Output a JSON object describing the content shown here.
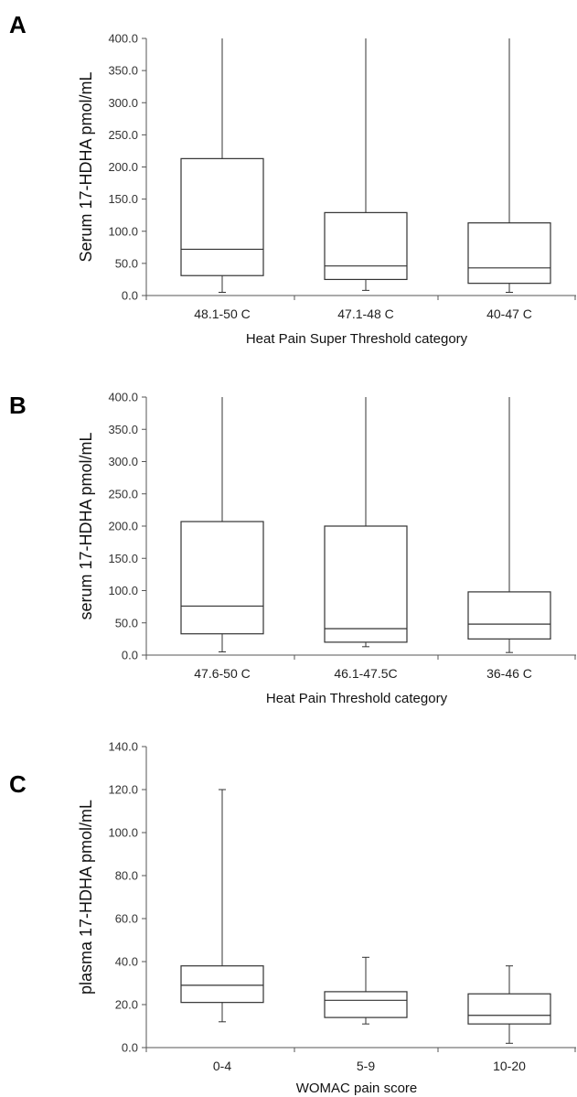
{
  "chart_data": [
    {
      "panel": "A",
      "type": "box",
      "ylabel": "Serum 17-HDHA pmol/mL",
      "xlabel": "Heat Pain Super Threshold category",
      "ylim": [
        0,
        400
      ],
      "yticks": [
        "0.0",
        "50.0",
        "100.0",
        "150.0",
        "200.0",
        "250.0",
        "300.0",
        "350.0",
        "400.0"
      ],
      "categories": [
        "48.1-50 C",
        "47.1-48 C",
        "40-47 C"
      ],
      "boxes": [
        {
          "min": 5,
          "q1": 31,
          "median": 72,
          "q3": 213,
          "max": 400
        },
        {
          "min": 8,
          "q1": 25,
          "median": 46,
          "q3": 129,
          "max": 400
        },
        {
          "min": 5,
          "q1": 19,
          "median": 43,
          "q3": 113,
          "max": 400
        }
      ]
    },
    {
      "panel": "B",
      "type": "box",
      "ylabel": "serum 17-HDHA pmol/mL",
      "xlabel": "Heat Pain Threshold category",
      "ylim": [
        0,
        400
      ],
      "yticks": [
        "0.0",
        "50.0",
        "100.0",
        "150.0",
        "200.0",
        "250.0",
        "300.0",
        "350.0",
        "400.0"
      ],
      "categories": [
        "47.6-50 C",
        "46.1-47.5C",
        "36-46 C"
      ],
      "boxes": [
        {
          "min": 5,
          "q1": 33,
          "median": 76,
          "q3": 207,
          "max": 400
        },
        {
          "min": 13,
          "q1": 20,
          "median": 41,
          "q3": 200,
          "max": 400
        },
        {
          "min": 4,
          "q1": 25,
          "median": 48,
          "q3": 98,
          "max": 400
        }
      ]
    },
    {
      "panel": "C",
      "type": "box",
      "ylabel": "plasma 17-HDHA pmol/mL",
      "xlabel": "WOMAC pain score",
      "ylim": [
        0,
        140
      ],
      "yticks": [
        "0.0",
        "20.0",
        "40.0",
        "60.0",
        "80.0",
        "100.0",
        "120.0",
        "140.0"
      ],
      "categories": [
        "0-4",
        "5-9",
        "10-20"
      ],
      "boxes": [
        {
          "min": 12,
          "q1": 21,
          "median": 29,
          "q3": 38,
          "max": 120
        },
        {
          "min": 11,
          "q1": 14,
          "median": 22,
          "q3": 26,
          "max": 42
        },
        {
          "min": 2,
          "q1": 11,
          "median": 15,
          "q3": 25,
          "max": 38
        }
      ]
    }
  ],
  "colors": {
    "box_fill": "#ffffff",
    "stroke": "#333333",
    "axis": "#555555",
    "text": "#222222"
  }
}
